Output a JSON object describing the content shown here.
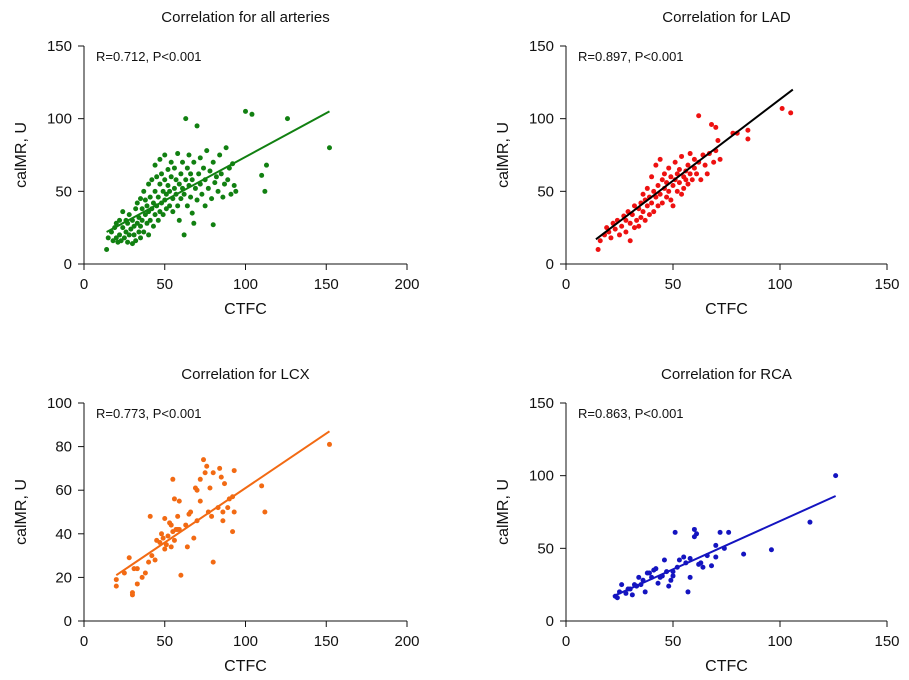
{
  "chart_data": [
    {
      "type": "scatter",
      "title": "Correlation for all arteries",
      "annotation": "R=0.712, P<0.001",
      "xlabel": "CTFC",
      "ylabel": "calMR, U",
      "xlim": [
        0,
        200
      ],
      "ylim": [
        0,
        150
      ],
      "xticks": [
        0,
        50,
        100,
        150,
        200
      ],
      "yticks": [
        0,
        50,
        100,
        150
      ],
      "color": "#118011",
      "fit_line": {
        "x": [
          14,
          152
        ],
        "y": [
          22,
          105
        ],
        "color": "#118011"
      },
      "points": [
        [
          14,
          10
        ],
        [
          15,
          18
        ],
        [
          17,
          22
        ],
        [
          18,
          16
        ],
        [
          19,
          25
        ],
        [
          20,
          28
        ],
        [
          20,
          18
        ],
        [
          21,
          15
        ],
        [
          22,
          20
        ],
        [
          22,
          30
        ],
        [
          23,
          16
        ],
        [
          24,
          25
        ],
        [
          24,
          36
        ],
        [
          25,
          18
        ],
        [
          26,
          22
        ],
        [
          26,
          30
        ],
        [
          27,
          15
        ],
        [
          27,
          28
        ],
        [
          28,
          20
        ],
        [
          28,
          34
        ],
        [
          29,
          24
        ],
        [
          30,
          14
        ],
        [
          30,
          30
        ],
        [
          31,
          20
        ],
        [
          31,
          26
        ],
        [
          32,
          16
        ],
        [
          32,
          38
        ],
        [
          33,
          28
        ],
        [
          33,
          42
        ],
        [
          34,
          22
        ],
        [
          34,
          32
        ],
        [
          35,
          18
        ],
        [
          35,
          26
        ],
        [
          35,
          45
        ],
        [
          36,
          30
        ],
        [
          36,
          38
        ],
        [
          37,
          22
        ],
        [
          37,
          50
        ],
        [
          38,
          34
        ],
        [
          38,
          44
        ],
        [
          39,
          28
        ],
        [
          39,
          40
        ],
        [
          40,
          20
        ],
        [
          40,
          36
        ],
        [
          40,
          55
        ],
        [
          41,
          30
        ],
        [
          41,
          46
        ],
        [
          42,
          38
        ],
        [
          42,
          58
        ],
        [
          43,
          26
        ],
        [
          43,
          42
        ],
        [
          44,
          34
        ],
        [
          44,
          50
        ],
        [
          44,
          68
        ],
        [
          45,
          40
        ],
        [
          45,
          60
        ],
        [
          46,
          30
        ],
        [
          46,
          46
        ],
        [
          47,
          36
        ],
        [
          47,
          55
        ],
        [
          47,
          72
        ],
        [
          48,
          42
        ],
        [
          48,
          62
        ],
        [
          49,
          34
        ],
        [
          49,
          50
        ],
        [
          50,
          44
        ],
        [
          50,
          58
        ],
        [
          50,
          75
        ],
        [
          51,
          38
        ],
        [
          51,
          48
        ],
        [
          52,
          54
        ],
        [
          52,
          65
        ],
        [
          53,
          40
        ],
        [
          53,
          50
        ],
        [
          54,
          60
        ],
        [
          54,
          70
        ],
        [
          55,
          45
        ],
        [
          55,
          36
        ],
        [
          56,
          52
        ],
        [
          56,
          66
        ],
        [
          57,
          48
        ],
        [
          57,
          58
        ],
        [
          58,
          40
        ],
        [
          58,
          76
        ],
        [
          59,
          55
        ],
        [
          59,
          30
        ],
        [
          60,
          62
        ],
        [
          60,
          45
        ],
        [
          61,
          52
        ],
        [
          61,
          70
        ],
        [
          62,
          20
        ],
        [
          62,
          48
        ],
        [
          63,
          58
        ],
        [
          63,
          100
        ],
        [
          64,
          66
        ],
        [
          64,
          40
        ],
        [
          65,
          54
        ],
        [
          65,
          75
        ],
        [
          66,
          46
        ],
        [
          66,
          62
        ],
        [
          67,
          35
        ],
        [
          67,
          58
        ],
        [
          68,
          70
        ],
        [
          68,
          28
        ],
        [
          69,
          52
        ],
        [
          70,
          44
        ],
        [
          70,
          95
        ],
        [
          71,
          62
        ],
        [
          72,
          55
        ],
        [
          72,
          73
        ],
        [
          73,
          48
        ],
        [
          74,
          66
        ],
        [
          75,
          40
        ],
        [
          75,
          58
        ],
        [
          76,
          78
        ],
        [
          77,
          52
        ],
        [
          78,
          64
        ],
        [
          79,
          45
        ],
        [
          80,
          70
        ],
        [
          80,
          27
        ],
        [
          81,
          56
        ],
        [
          82,
          60
        ],
        [
          83,
          50
        ],
        [
          84,
          75
        ],
        [
          85,
          62
        ],
        [
          86,
          46
        ],
        [
          87,
          55
        ],
        [
          88,
          80
        ],
        [
          89,
          58
        ],
        [
          90,
          66
        ],
        [
          91,
          48
        ],
        [
          92,
          69
        ],
        [
          93,
          54
        ],
        [
          94,
          50
        ],
        [
          100,
          105
        ],
        [
          104,
          103
        ],
        [
          110,
          61
        ],
        [
          113,
          68
        ],
        [
          112,
          50
        ],
        [
          126,
          100
        ],
        [
          152,
          80
        ]
      ]
    },
    {
      "type": "scatter",
      "title": "Correlation for LAD",
      "annotation": "R=0.897, P<0.001",
      "xlabel": "CTFC",
      "ylabel": "calMR, U",
      "xlim": [
        0,
        150
      ],
      "ylim": [
        0,
        150
      ],
      "xticks": [
        0,
        50,
        100,
        150
      ],
      "yticks": [
        0,
        50,
        100,
        150
      ],
      "color": "#ee1111",
      "fit_line": {
        "x": [
          14,
          106
        ],
        "y": [
          17,
          120
        ],
        "color": "#000000"
      },
      "points": [
        [
          15,
          10
        ],
        [
          16,
          16
        ],
        [
          18,
          20
        ],
        [
          19,
          25
        ],
        [
          20,
          22
        ],
        [
          21,
          18
        ],
        [
          22,
          28
        ],
        [
          23,
          24
        ],
        [
          24,
          30
        ],
        [
          25,
          20
        ],
        [
          26,
          26
        ],
        [
          27,
          33
        ],
        [
          28,
          22
        ],
        [
          28,
          30
        ],
        [
          29,
          36
        ],
        [
          30,
          28
        ],
        [
          30,
          16
        ],
        [
          31,
          34
        ],
        [
          32,
          25
        ],
        [
          32,
          40
        ],
        [
          33,
          30
        ],
        [
          34,
          38
        ],
        [
          34,
          26
        ],
        [
          35,
          42
        ],
        [
          35,
          32
        ],
        [
          36,
          36
        ],
        [
          36,
          48
        ],
        [
          37,
          30
        ],
        [
          37,
          44
        ],
        [
          38,
          40
        ],
        [
          38,
          52
        ],
        [
          39,
          34
        ],
        [
          39,
          46
        ],
        [
          40,
          42
        ],
        [
          40,
          60
        ],
        [
          41,
          50
        ],
        [
          41,
          36
        ],
        [
          42,
          46
        ],
        [
          42,
          68
        ],
        [
          43,
          40
        ],
        [
          43,
          54
        ],
        [
          44,
          48
        ],
        [
          44,
          72
        ],
        [
          45,
          42
        ],
        [
          45,
          58
        ],
        [
          46,
          52
        ],
        [
          46,
          62
        ],
        [
          47,
          46
        ],
        [
          47,
          56
        ],
        [
          48,
          50
        ],
        [
          48,
          66
        ],
        [
          49,
          44
        ],
        [
          49,
          60
        ],
        [
          50,
          54
        ],
        [
          50,
          40
        ],
        [
          51,
          58
        ],
        [
          51,
          70
        ],
        [
          52,
          50
        ],
        [
          52,
          62
        ],
        [
          53,
          56
        ],
        [
          53,
          65
        ],
        [
          54,
          48
        ],
        [
          54,
          74
        ],
        [
          55,
          60
        ],
        [
          55,
          52
        ],
        [
          56,
          64
        ],
        [
          56,
          58
        ],
        [
          57,
          55
        ],
        [
          57,
          68
        ],
        [
          58,
          62
        ],
        [
          58,
          76
        ],
        [
          59,
          58
        ],
        [
          60,
          66
        ],
        [
          60,
          72
        ],
        [
          61,
          62
        ],
        [
          62,
          70
        ],
        [
          62,
          102
        ],
        [
          63,
          58
        ],
        [
          64,
          75
        ],
        [
          65,
          68
        ],
        [
          66,
          62
        ],
        [
          67,
          76
        ],
        [
          68,
          96
        ],
        [
          69,
          70
        ],
        [
          70,
          94
        ],
        [
          70,
          78
        ],
        [
          71,
          85
        ],
        [
          72,
          72
        ],
        [
          78,
          90
        ],
        [
          80,
          90
        ],
        [
          85,
          86
        ],
        [
          85,
          92
        ],
        [
          101,
          107
        ],
        [
          105,
          104
        ]
      ]
    },
    {
      "type": "scatter",
      "title": "Correlation for LCX",
      "annotation": "R=0.773, P<0.001",
      "xlabel": "CTFC",
      "ylabel": "calMR, U",
      "xlim": [
        0,
        200
      ],
      "ylim": [
        0,
        100
      ],
      "xticks": [
        0,
        50,
        100,
        150,
        200
      ],
      "yticks": [
        0,
        20,
        40,
        60,
        80,
        100
      ],
      "color": "#f26a13",
      "fit_line": {
        "x": [
          20,
          152
        ],
        "y": [
          21,
          87
        ],
        "color": "#f26a13"
      },
      "points": [
        [
          20,
          16
        ],
        [
          20,
          19
        ],
        [
          25,
          22
        ],
        [
          28,
          29
        ],
        [
          30,
          13
        ],
        [
          30,
          12
        ],
        [
          31,
          24
        ],
        [
          33,
          24
        ],
        [
          33,
          17
        ],
        [
          36,
          20
        ],
        [
          38,
          22
        ],
        [
          40,
          27
        ],
        [
          41,
          48
        ],
        [
          42,
          30
        ],
        [
          44,
          28
        ],
        [
          45,
          37
        ],
        [
          47,
          36
        ],
        [
          48,
          40
        ],
        [
          49,
          38
        ],
        [
          50,
          47
        ],
        [
          50,
          33
        ],
        [
          51,
          35
        ],
        [
          52,
          39
        ],
        [
          53,
          45
        ],
        [
          54,
          34
        ],
        [
          54,
          44
        ],
        [
          55,
          41
        ],
        [
          55,
          65
        ],
        [
          56,
          37
        ],
        [
          56,
          56
        ],
        [
          57,
          42
        ],
        [
          58,
          42
        ],
        [
          58,
          48
        ],
        [
          59,
          42
        ],
        [
          59,
          55
        ],
        [
          60,
          21
        ],
        [
          63,
          44
        ],
        [
          64,
          34
        ],
        [
          65,
          49
        ],
        [
          66,
          50
        ],
        [
          68,
          38
        ],
        [
          69,
          61
        ],
        [
          70,
          46
        ],
        [
          70,
          60
        ],
        [
          72,
          55
        ],
        [
          72,
          65
        ],
        [
          74,
          74
        ],
        [
          75,
          68
        ],
        [
          76,
          71
        ],
        [
          77,
          50
        ],
        [
          78,
          61
        ],
        [
          79,
          48
        ],
        [
          80,
          27
        ],
        [
          80,
          68
        ],
        [
          83,
          52
        ],
        [
          84,
          70
        ],
        [
          85,
          66
        ],
        [
          86,
          46
        ],
        [
          86,
          50
        ],
        [
          87,
          63
        ],
        [
          89,
          52
        ],
        [
          90,
          56
        ],
        [
          92,
          57
        ],
        [
          92,
          41
        ],
        [
          93,
          50
        ],
        [
          93,
          69
        ],
        [
          110,
          62
        ],
        [
          112,
          50
        ],
        [
          152,
          81
        ]
      ]
    },
    {
      "type": "scatter",
      "title": "Correlation for RCA",
      "annotation": "R=0.863, P<0.001",
      "xlabel": "CTFC",
      "ylabel": "calMR, U",
      "xlim": [
        0,
        150
      ],
      "ylim": [
        0,
        150
      ],
      "xticks": [
        0,
        50,
        100,
        150
      ],
      "yticks": [
        0,
        50,
        100,
        150
      ],
      "color": "#1414c0",
      "fit_line": {
        "x": [
          22,
          126
        ],
        "y": [
          17,
          86
        ],
        "color": "#1414c0"
      },
      "points": [
        [
          23,
          17
        ],
        [
          24,
          16
        ],
        [
          25,
          20
        ],
        [
          26,
          25
        ],
        [
          28,
          19
        ],
        [
          29,
          22
        ],
        [
          30,
          22
        ],
        [
          31,
          18
        ],
        [
          32,
          25
        ],
        [
          33,
          24
        ],
        [
          34,
          30
        ],
        [
          35,
          25
        ],
        [
          36,
          28
        ],
        [
          37,
          20
        ],
        [
          38,
          33
        ],
        [
          39,
          33
        ],
        [
          40,
          30
        ],
        [
          41,
          35
        ],
        [
          42,
          36
        ],
        [
          43,
          26
        ],
        [
          44,
          30
        ],
        [
          45,
          31
        ],
        [
          46,
          42
        ],
        [
          47,
          34
        ],
        [
          48,
          24
        ],
        [
          49,
          28
        ],
        [
          50,
          34
        ],
        [
          50,
          31
        ],
        [
          51,
          61
        ],
        [
          52,
          37
        ],
        [
          53,
          42
        ],
        [
          55,
          44
        ],
        [
          56,
          40
        ],
        [
          57,
          20
        ],
        [
          58,
          30
        ],
        [
          58,
          43
        ],
        [
          60,
          63
        ],
        [
          60,
          58
        ],
        [
          61,
          60
        ],
        [
          62,
          39
        ],
        [
          63,
          40
        ],
        [
          64,
          37
        ],
        [
          66,
          45
        ],
        [
          68,
          38
        ],
        [
          70,
          52
        ],
        [
          70,
          44
        ],
        [
          72,
          61
        ],
        [
          74,
          50
        ],
        [
          76,
          61
        ],
        [
          83,
          46
        ],
        [
          96,
          49
        ],
        [
          114,
          68
        ],
        [
          126,
          100
        ]
      ]
    }
  ]
}
